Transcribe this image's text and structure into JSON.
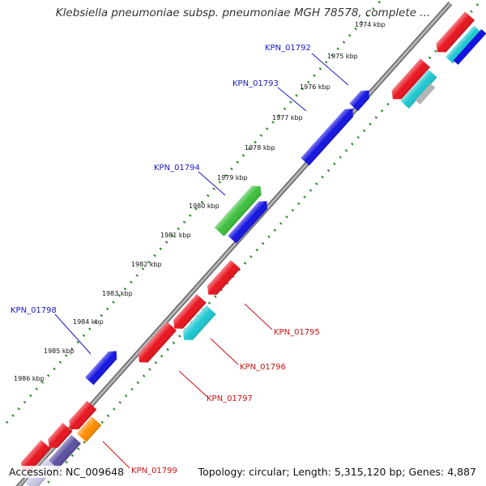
{
  "title": "Klebsiella pneumoniae subsp. pneumoniae MGH 78578, complete ...",
  "footer": {
    "accession": "Accession: NC_009648",
    "summary": "Topology: circular; Length: 5,315,120 bp; Genes: 4,887"
  },
  "ticks": [
    "1974 kbp",
    "1975 kbp",
    "1976 kbp",
    "1977 kbp",
    "1978 kbp",
    "1979 kbp",
    "1980 kbp",
    "1981 kbp",
    "1982 kbp",
    "1983 kbp",
    "1984 kbp",
    "1985 kbp",
    "1986 kbp"
  ],
  "gene_labels": {
    "KPN_01792": "KPN_01792",
    "KPN_01793": "KPN_01793",
    "KPN_01794": "KPN_01794",
    "KPN_01795": "KPN_01795",
    "KPN_01796": "KPN_01796",
    "KPN_01797": "KPN_01797",
    "KPN_01798": "KPN_01798",
    "KPN_01799": "KPN_01799"
  },
  "colors": {
    "backbone": "#8a8a8a",
    "tick_dots": "#2e8b2e",
    "label_forward": "#1a1acc",
    "label_reverse": "#cc1111",
    "gene_red": "#e8141e",
    "gene_blue": "#1414e0",
    "gene_green": "#3cbf3c",
    "gene_cyan": "#1ec8d2",
    "gene_orange": "#ff8c00",
    "gene_purple": "#5a50a0",
    "gene_gray": "#b4b4b4"
  }
}
